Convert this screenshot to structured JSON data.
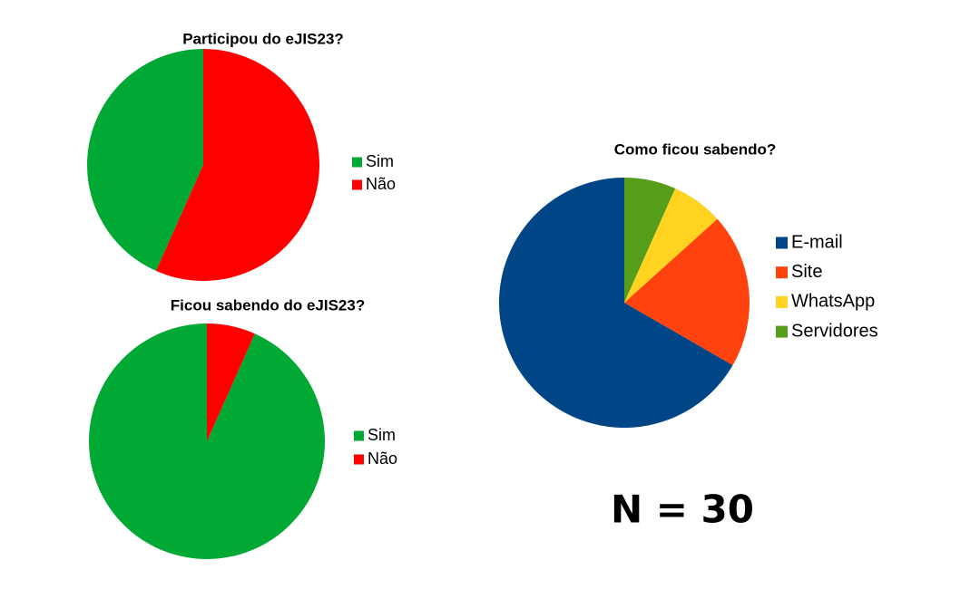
{
  "chart_data": [
    {
      "type": "pie",
      "title": "Participou do eJIS23?",
      "categories": [
        "Sim",
        "Não"
      ],
      "values": [
        13,
        17
      ],
      "colors": [
        "#00a933",
        "#ff0000"
      ]
    },
    {
      "type": "pie",
      "title": "Ficou sabendo do eJIS23?",
      "categories": [
        "Sim",
        "Não"
      ],
      "values": [
        28,
        2
      ],
      "colors": [
        "#00a933",
        "#ff0000"
      ]
    },
    {
      "type": "pie",
      "title": "Como ficou sabendo?",
      "categories": [
        "E-mail",
        "Site",
        "WhatsApp",
        "Servidores"
      ],
      "values": [
        20,
        6,
        2,
        2
      ],
      "colors": [
        "#004586",
        "#ff420e",
        "#ffd320",
        "#579d1c"
      ]
    }
  ],
  "annotation": "N = 30"
}
